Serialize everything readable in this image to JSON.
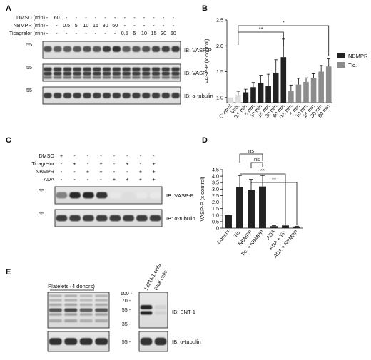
{
  "figure": {
    "panels": {
      "A": {
        "label": "A",
        "row_labels": [
          "DMSO (min)",
          "NBMPR (min)",
          "Ticagrelor (min)"
        ],
        "row_values": [
          [
            "-",
            "60",
            "-",
            "-",
            "-",
            "-",
            "-",
            "-",
            "-",
            "-",
            "-",
            "-",
            "-",
            "-"
          ],
          [
            "-",
            "-",
            "0.5",
            "5",
            "10",
            "15",
            "30",
            "60",
            "-",
            "-",
            "-",
            "-",
            "-",
            "-"
          ],
          [
            "-",
            "-",
            "-",
            "-",
            "-",
            "-",
            "-",
            "-",
            "0.5",
            "5",
            "10",
            "15",
            "30",
            "60"
          ]
        ],
        "blots": [
          {
            "mw": "55",
            "label": "IB: VASP-P"
          },
          {
            "mw": "55",
            "label": "IB: VASP"
          },
          {
            "mw": "55",
            "label": "IB: α-tubulin"
          }
        ]
      },
      "C": {
        "label": "C",
        "row_labels": [
          "DMSO",
          "Ticagrelor",
          "NBMPR",
          "ADA"
        ],
        "row_values": [
          [
            "+",
            "-",
            "-",
            "-",
            "-",
            "-",
            "-",
            "-"
          ],
          [
            "-",
            "+",
            "-",
            "+",
            "-",
            "+",
            "-",
            "+"
          ],
          [
            "-",
            "-",
            "+",
            "+",
            "-",
            "-",
            "+",
            "+"
          ],
          [
            "-",
            "-",
            "-",
            "-",
            "+",
            "+",
            "+",
            "+"
          ]
        ],
        "blots": [
          {
            "mw": "55",
            "label": "IB: VASP-P"
          },
          {
            "mw": "55",
            "label": "IB: α-tubulin"
          }
        ]
      },
      "E": {
        "label": "E",
        "group_left": "Platelets (4 donors)",
        "group_right": [
          "1321N1 cells",
          "Glial cells"
        ],
        "markers": [
          "100 -",
          "70 -",
          "55 -",
          "35 -"
        ],
        "marker_bottom": "55 -",
        "blots": [
          {
            "label": "IB: ENT-1"
          },
          {
            "label": "IB: α-tubulin"
          }
        ]
      }
    }
  },
  "chart_data": [
    {
      "panel": "B",
      "type": "bar",
      "ylabel": "VASP-P (x control)",
      "ylim": [
        0.9,
        2.5
      ],
      "yticks": [
        "1.0",
        "1.5",
        "2.0",
        "2.5"
      ],
      "categories": [
        "Control",
        "Veh.",
        "0.5 min",
        "5 min",
        "10 min",
        "15 min",
        "30 min",
        "60 min",
        "0.5 min",
        "5 min",
        "10 min",
        "15 min",
        "30 min",
        "60 min"
      ],
      "values": [
        1.0,
        1.05,
        1.1,
        1.2,
        1.28,
        1.23,
        1.48,
        1.78,
        1.12,
        1.25,
        1.3,
        1.38,
        1.5,
        1.6
      ],
      "errors": [
        0,
        0.07,
        0.06,
        0.09,
        0.15,
        0.22,
        0.25,
        0.35,
        0.12,
        0.12,
        0.08,
        0.08,
        0.12,
        0.15
      ],
      "groups": [
        "control",
        "control",
        "NBMPR",
        "NBMPR",
        "NBMPR",
        "NBMPR",
        "NBMPR",
        "NBMPR",
        "Tic.",
        "Tic.",
        "Tic.",
        "Tic.",
        "Tic.",
        "Tic."
      ],
      "legend": [
        {
          "name": "NBMPR",
          "color": "#222222"
        },
        {
          "name": "Tic.",
          "color": "#8c8c8c"
        }
      ],
      "control_color": "#dddddd",
      "significance": [
        {
          "label": "**",
          "from": "Veh.",
          "to": "60 min (NBMPR)"
        },
        {
          "label": "*",
          "from": "Veh.",
          "to": "60 min (Tic.)"
        }
      ]
    },
    {
      "panel": "D",
      "type": "bar",
      "ylabel": "VASP-P (x control)",
      "ylim": [
        0,
        4.5
      ],
      "yticks": [
        "0",
        "0.5",
        "1.0",
        "1.5",
        "2.0",
        "2.5",
        "3.0",
        "3.5",
        "4.0",
        "4.5"
      ],
      "categories": [
        "Control",
        "Tic.",
        "NBMPR",
        "Tic. + NBMPR",
        "ADA",
        "ADA + Tic.",
        "ADA + NBMPR"
      ],
      "values": [
        1.0,
        3.15,
        2.95,
        3.2,
        0.15,
        0.2,
        0.12
      ],
      "errors": [
        0,
        0.9,
        0.8,
        0.85,
        0.04,
        0.05,
        0.03
      ],
      "color": "#222222",
      "significance": [
        {
          "label": "ns",
          "from": "Tic.",
          "to": "Tic. + NBMPR"
        },
        {
          "label": "ns",
          "from": "NBMPR",
          "to": "Tic. + NBMPR"
        },
        {
          "label": "**",
          "from": "Tic.",
          "to": "ADA + Tic."
        },
        {
          "label": "**",
          "from": "NBMPR",
          "to": "ADA + NBMPR"
        }
      ]
    }
  ]
}
